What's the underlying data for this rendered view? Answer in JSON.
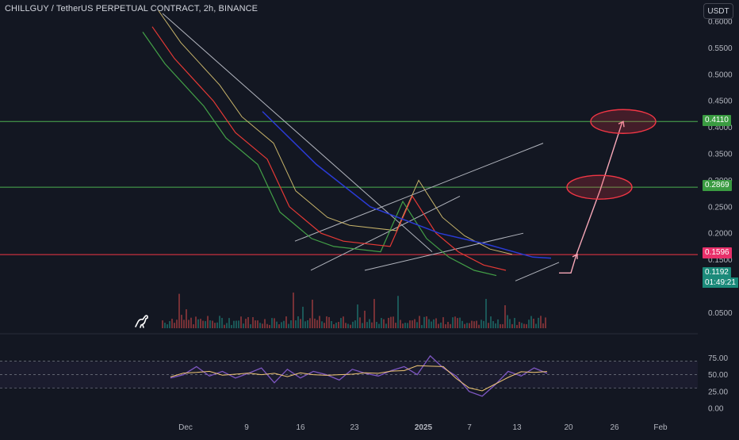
{
  "header": {
    "symbol_title": "CHILLGUY / TetherUS PERPETUAL CONTRACT, 2h, BINANCE",
    "currency_button": "USDT"
  },
  "price_axis": {
    "ticks": [
      "0.6000",
      "0.5500",
      "0.5000",
      "0.4500",
      "0.4000",
      "0.3500",
      "0.3000",
      "0.2500",
      "0.2000",
      "0.1500",
      "0.0500"
    ],
    "tag_upper_resistance": "0.4110",
    "tag_mid_resistance": "0.2869",
    "tag_red_level": "0.1596",
    "tag_last_price": "0.1192",
    "tag_countdown": "01:49:21"
  },
  "rsi_axis": {
    "ticks": [
      "75.00",
      "50.00",
      "25.00",
      "0.00"
    ]
  },
  "time_axis": {
    "labels": [
      "Dec",
      "9",
      "16",
      "23",
      "2025",
      "7",
      "13",
      "20",
      "26",
      "Feb"
    ]
  },
  "colors": {
    "background": "#131722",
    "resistance_green": "#4caf50",
    "level_red": "#f23645",
    "ema_blue": "#2a3bd6",
    "ma_red": "#e53935",
    "price_green": "#43a047",
    "target_ellipse": "#f23645",
    "projection_arrow": "#f7a8b8",
    "rsi_purple": "#7e57c2",
    "rsi_signal": "#f0c674"
  },
  "chart_data": {
    "type": "line",
    "instrument": "CHILLGUY / TetherUS PERPETUAL CONTRACT, 2h, BINANCE",
    "y_axis_range": [
      0.0,
      0.6
    ],
    "horizontal_levels": [
      0.411,
      0.2869,
      0.1596
    ],
    "last_price": 0.1192,
    "x_labels": [
      "Dec",
      "9",
      "16",
      "23",
      "2025",
      "7",
      "13",
      "20",
      "26",
      "Feb"
    ],
    "price_series": [
      {
        "x": "Dec",
        "y": 0.58
      },
      {
        "x": "Dec",
        "y": 0.52
      },
      {
        "x": "9",
        "y": 0.44
      },
      {
        "x": "9",
        "y": 0.38
      },
      {
        "x": "16",
        "y": 0.33
      },
      {
        "x": "16",
        "y": 0.24
      },
      {
        "x": "23",
        "y": 0.19
      },
      {
        "x": "23",
        "y": 0.175
      },
      {
        "x": "2025",
        "y": 0.165
      },
      {
        "x": "2025",
        "y": 0.26
      },
      {
        "x": "7",
        "y": 0.19
      },
      {
        "x": "7",
        "y": 0.155
      },
      {
        "x": "13",
        "y": 0.13
      },
      {
        "x": "13",
        "y": 0.12
      }
    ],
    "ema_series": [
      {
        "x": "9",
        "y": 0.43
      },
      {
        "x": "16",
        "y": 0.33
      },
      {
        "x": "23",
        "y": 0.25
      },
      {
        "x": "2025",
        "y": 0.2
      },
      {
        "x": "7",
        "y": 0.18
      },
      {
        "x": "13",
        "y": 0.155
      }
    ],
    "projection_targets": [
      0.2869,
      0.411
    ],
    "rsi": {
      "range": [
        0,
        100
      ],
      "upper_band": 70,
      "lower_band": 30,
      "values": [
        45,
        50,
        62,
        48,
        55,
        45,
        52,
        60,
        38,
        58,
        45,
        55,
        50,
        42,
        58,
        52,
        48,
        56,
        62,
        50,
        78,
        60,
        48,
        25,
        18,
        35,
        55,
        48,
        60,
        52
      ]
    },
    "grid": false,
    "legend": "none"
  }
}
